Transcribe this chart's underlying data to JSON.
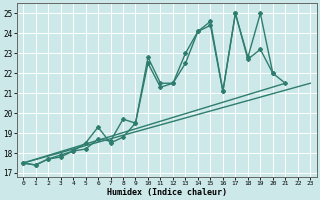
{
  "xlabel": "Humidex (Indice chaleur)",
  "bg_color": "#cce8e8",
  "grid_color": "#ffffff",
  "line_color": "#2e7d6e",
  "xlim": [
    -0.5,
    23.5
  ],
  "ylim": [
    16.8,
    25.5
  ],
  "xticks": [
    0,
    1,
    2,
    3,
    4,
    5,
    6,
    7,
    8,
    9,
    10,
    11,
    12,
    13,
    14,
    15,
    16,
    17,
    18,
    19,
    20,
    21,
    22,
    23
  ],
  "yticks": [
    17,
    18,
    19,
    20,
    21,
    22,
    23,
    24,
    25
  ],
  "curve1_x": [
    0,
    1,
    2,
    3,
    4,
    5,
    6,
    7,
    8,
    9,
    10,
    11,
    12,
    13,
    14,
    15,
    16,
    17,
    18,
    19,
    20,
    21
  ],
  "curve1_y": [
    17.5,
    17.4,
    17.7,
    17.9,
    18.1,
    18.2,
    18.7,
    18.6,
    19.7,
    19.5,
    22.8,
    21.5,
    21.5,
    23.0,
    24.1,
    24.6,
    21.1,
    25.0,
    22.8,
    25.0,
    22.0,
    21.5
  ],
  "curve2_x": [
    0,
    1,
    2,
    3,
    4,
    5,
    6,
    7,
    8,
    9,
    10,
    11,
    12,
    13,
    14,
    15,
    16,
    17,
    18,
    19,
    20
  ],
  "curve2_y": [
    17.5,
    17.4,
    17.7,
    17.8,
    18.1,
    18.5,
    19.3,
    18.5,
    18.8,
    19.5,
    22.5,
    21.3,
    21.5,
    22.5,
    24.1,
    24.4,
    21.1,
    25.0,
    22.7,
    23.2,
    22.0
  ],
  "line3_x": [
    0,
    23
  ],
  "line3_y": [
    17.5,
    21.5
  ],
  "line4_x": [
    0,
    21
  ],
  "line4_y": [
    17.5,
    21.5
  ]
}
